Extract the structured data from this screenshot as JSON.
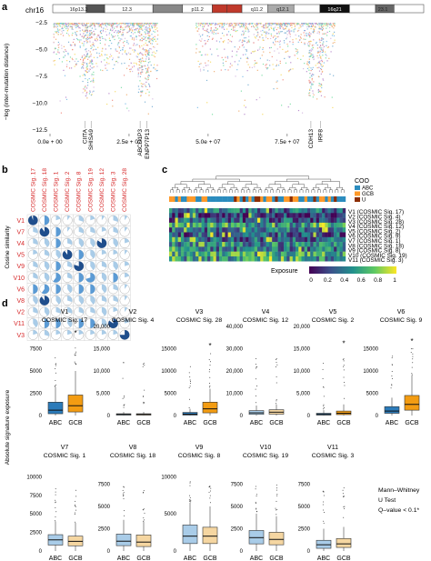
{
  "panel_labels": [
    "a",
    "b",
    "c",
    "d"
  ],
  "chart_data": [
    {
      "panel": "a",
      "type": "scatter",
      "chromosome": "chr16",
      "bands": [
        "16p13.3",
        "12.3",
        "p11.2",
        "q11.2",
        "q12.1",
        "16q21",
        "23.1"
      ],
      "ylabel": "−log (inter-mutation distance)",
      "ylim": [
        -12.5,
        -2.5
      ],
      "xlim": [
        0,
        90000000
      ],
      "yticks": [
        -2.5,
        -5.0,
        -7.5,
        -10.0,
        -12.5
      ],
      "ytick_labels": [
        "−2.5",
        "−5.0",
        "−7.5",
        "−10.0",
        "−12.5"
      ],
      "xticks": [
        0,
        25000000,
        50000000,
        75000000
      ],
      "xtick_labels": [
        "0.0e + 00",
        "2.5e + 07",
        "5.0e + 07",
        "7.5e + 07"
      ],
      "gene_annotations": [
        {
          "label": "CIITA",
          "x": 11000000
        },
        {
          "label": "SHISA9",
          "x": 13000000
        },
        {
          "label": "ABCD1P3",
          "x": 28500000
        },
        {
          "label": "ENPP7P13",
          "x": 30700000
        },
        {
          "label": "CDH13",
          "x": 82500000
        },
        {
          "label": "IRF8",
          "x": 85500000
        }
      ],
      "point_colors": [
        "#7fb3d5",
        "#f0b27a",
        "#82e0aa",
        "#f1948a",
        "#bb8fce",
        "#f7dc6f",
        "#85c1e9",
        "#d7bde2"
      ]
    },
    {
      "panel": "b",
      "type": "heatmap",
      "ylabel": "Cosine similarity",
      "columns": [
        "COSMIC Sig. 17",
        "COSMIC Sig. 18",
        "COSMIC Sig. 1",
        "COSMIC Sig. 2",
        "COSMIC Sig. 8",
        "COSMIC Sig. 19",
        "COSMIC Sig. 12",
        "COSMIC Sig. 3",
        "COSMIC Sig. 28"
      ],
      "rows": [
        "V1",
        "V7",
        "V4",
        "V5",
        "V9",
        "V10",
        "V6",
        "V8",
        "V2",
        "V11",
        "V3"
      ],
      "values": [
        [
          0.95,
          0.5,
          0.2,
          0.1,
          0.3,
          0.2,
          0.1,
          0.3,
          0.1
        ],
        [
          0.3,
          0.9,
          0.5,
          0.1,
          0.3,
          0.3,
          0.2,
          0.3,
          0.1
        ],
        [
          0.3,
          0.4,
          0.5,
          0.3,
          0.4,
          0.4,
          0.85,
          0.4,
          0.2
        ],
        [
          0.2,
          0.3,
          0.4,
          0.9,
          0.5,
          0.4,
          0.2,
          0.2,
          0.1
        ],
        [
          0.3,
          0.4,
          0.5,
          0.3,
          0.8,
          0.4,
          0.3,
          0.4,
          0.2
        ],
        [
          0.3,
          0.4,
          0.6,
          0.3,
          0.5,
          0.7,
          0.4,
          0.5,
          0.2
        ],
        [
          0.5,
          0.6,
          0.5,
          0.4,
          0.5,
          0.5,
          0.4,
          0.3,
          0.1
        ],
        [
          0.4,
          0.9,
          0.4,
          0.3,
          0.4,
          0.4,
          0.3,
          0.3,
          0.1
        ],
        [
          0.3,
          0.4,
          0.3,
          0.3,
          0.3,
          0.3,
          0.4,
          0.2,
          0.1
        ],
        [
          0.4,
          0.5,
          0.5,
          0.4,
          0.5,
          0.5,
          0.4,
          0.85,
          0.2
        ],
        [
          0.2,
          0.3,
          0.2,
          0.2,
          0.2,
          0.2,
          0.2,
          0.2,
          0.75
        ]
      ]
    },
    {
      "panel": "c",
      "type": "heatmap",
      "legend_title": "COO",
      "legend_items": [
        {
          "label": "ABC",
          "color": "#2b8cbe"
        },
        {
          "label": "GCB",
          "color": "#fe9929"
        },
        {
          "label": "U",
          "color": "#8c2d04"
        }
      ],
      "rows": [
        "V1 (COSMIC Sig. 17)",
        "V2 (COSMIC Sig. 4)",
        "V3 (COSMIC Sig. 28)",
        "V4 (COSMIC Sig. 12)",
        "V5 (COSMIC Sig. 2)",
        "V6 (COSMIC Sig. 9)",
        "V7 (COSMIC Sig. 1)",
        "V8 (COSMIC Sig. 18)",
        "V9 (COSMIC Sig. 8)",
        "V10 (COSMIC Sig. 19)",
        "V11 (COSMIC Sig. 3)"
      ],
      "row_means": [
        0.35,
        0.15,
        0.3,
        0.5,
        0.35,
        0.3,
        0.3,
        0.45,
        0.4,
        0.6,
        0.5
      ],
      "n_samples": 60,
      "colorbar_title": "Exposure",
      "colorbar_ticks": [
        "0",
        "0.2",
        "0.4",
        "0.6",
        "0.8",
        "1"
      ],
      "colormap": [
        "#440154",
        "#3b528b",
        "#21918c",
        "#5ec962",
        "#fde725"
      ]
    },
    {
      "panel": "d",
      "type": "box",
      "ylabel": "Absolute signature exposure",
      "groups": [
        "ABC",
        "GCB"
      ],
      "group_colors": [
        "#2b7bba",
        "#f39c12"
      ],
      "footnote": [
        "Mann–Whitney",
        "U Test",
        "Q–value < 0.1*"
      ],
      "panels": [
        {
          "title": "V1",
          "subtitle": "COSMIC Sig. 17",
          "significant": true,
          "ylim": [
            0,
            10000
          ],
          "yticks": [
            0,
            2500,
            5000,
            7500
          ],
          "ytick_labels": [
            "0",
            "2500",
            "5000",
            "7500"
          ],
          "boxes": [
            {
              "q1": 200,
              "median": 600,
              "q3": 1500,
              "lo": 0,
              "hi": 3200
            },
            {
              "q1": 400,
              "median": 1100,
              "q3": 2300,
              "lo": 0,
              "hi": 5000
            }
          ],
          "star_y": 9200
        },
        {
          "title": "V2",
          "subtitle": "COSMIC Sig. 4",
          "significant": false,
          "ylim": [
            0,
            20000
          ],
          "yticks": [
            0,
            5000,
            10000,
            15000,
            20000
          ],
          "ytick_labels": [
            "0",
            "5,000",
            "10,000",
            "15,000",
            "20,000"
          ],
          "boxes": [
            {
              "q1": 100,
              "median": 250,
              "q3": 400,
              "lo": 0,
              "hi": 800
            },
            {
              "q1": 100,
              "median": 250,
              "q3": 400,
              "lo": 0,
              "hi": 800
            }
          ]
        },
        {
          "title": "V3",
          "subtitle": "COSMIC Sig. 28",
          "significant": true,
          "ylim": [
            0,
            20000
          ],
          "yticks": [
            0,
            5000,
            10000,
            15000
          ],
          "ytick_labels": [
            "0",
            "5000",
            "10000",
            "15000"
          ],
          "boxes": [
            {
              "q1": 100,
              "median": 300,
              "q3": 700,
              "lo": 0,
              "hi": 1500
            },
            {
              "q1": 600,
              "median": 1500,
              "q3": 3000,
              "lo": 0,
              "hi": 6000
            }
          ],
          "star_y": 15500
        },
        {
          "title": "V4",
          "subtitle": "COSMIC Sig. 12",
          "significant": false,
          "ylim": [
            0,
            40000
          ],
          "yticks": [
            0,
            10000,
            20000,
            30000,
            40000
          ],
          "ytick_labels": [
            "0",
            "10,000",
            "20,000",
            "30,000",
            "40,000"
          ],
          "boxes": [
            {
              "q1": 500,
              "median": 1200,
              "q3": 2200,
              "lo": 0,
              "hi": 4500
            },
            {
              "q1": 600,
              "median": 1500,
              "q3": 2600,
              "lo": 0,
              "hi": 5000
            }
          ]
        },
        {
          "title": "V5",
          "subtitle": "COSMIC Sig. 2",
          "significant": true,
          "ylim": [
            0,
            20000
          ],
          "yticks": [
            0,
            5000,
            10000,
            15000,
            20000
          ],
          "ytick_labels": [
            "0",
            "5,000",
            "10,000",
            "15,000",
            "20,000"
          ],
          "boxes": [
            {
              "q1": 100,
              "median": 250,
              "q3": 500,
              "lo": 0,
              "hi": 1200
            },
            {
              "q1": 200,
              "median": 500,
              "q3": 1000,
              "lo": 0,
              "hi": 2500
            }
          ],
          "star_y": 16000
        },
        {
          "title": "V6",
          "subtitle": "COSMIC Sig. 9",
          "significant": true,
          "ylim": [
            0,
            20000
          ],
          "yticks": [
            0,
            5000,
            10000,
            15000
          ],
          "ytick_labels": [
            "0",
            "5000",
            "10000",
            "15000"
          ],
          "boxes": [
            {
              "q1": 500,
              "median": 1000,
              "q3": 2000,
              "lo": 0,
              "hi": 4000
            },
            {
              "q1": 1200,
              "median": 2500,
              "q3": 4500,
              "lo": 0,
              "hi": 9000
            }
          ],
          "star_y": 16500
        },
        {
          "title": "V7",
          "subtitle": "COSMIC Sig. 1",
          "significant": false,
          "ylim": [
            0,
            12000
          ],
          "yticks": [
            0,
            2500,
            5000,
            7500,
            10000
          ],
          "ytick_labels": [
            "0",
            "2500",
            "5000",
            "7500",
            "10000"
          ],
          "boxes": [
            {
              "q1": 800,
              "median": 1500,
              "q3": 2200,
              "lo": 0,
              "hi": 4000
            },
            {
              "q1": 700,
              "median": 1300,
              "q3": 2000,
              "lo": 0,
              "hi": 3800
            }
          ]
        },
        {
          "title": "V8",
          "subtitle": "COSMIC Sig. 18",
          "significant": false,
          "ylim": [
            0,
            10000
          ],
          "yticks": [
            0,
            2500,
            5000,
            7500
          ],
          "ytick_labels": [
            "0",
            "2500",
            "5000",
            "7500"
          ],
          "boxes": [
            {
              "q1": 600,
              "median": 1100,
              "q3": 1900,
              "lo": 0,
              "hi": 3500
            },
            {
              "q1": 500,
              "median": 1000,
              "q3": 1800,
              "lo": 0,
              "hi": 3300
            }
          ]
        },
        {
          "title": "V9",
          "subtitle": "COSMIC Sig. 8",
          "significant": false,
          "ylim": [
            0,
            12000
          ],
          "yticks": [
            0,
            5000,
            10000
          ],
          "ytick_labels": [
            "0",
            "5000",
            "10000"
          ],
          "boxes": [
            {
              "q1": 1000,
              "median": 2000,
              "q3": 3500,
              "lo": 0,
              "hi": 6500
            },
            {
              "q1": 1000,
              "median": 2000,
              "q3": 3200,
              "lo": 0,
              "hi": 6000
            }
          ]
        },
        {
          "title": "V10",
          "subtitle": "COSMIC Sig. 19",
          "significant": false,
          "ylim": [
            0,
            10000
          ],
          "yticks": [
            0,
            2500,
            5000,
            7500
          ],
          "ytick_labels": [
            "0",
            "2500",
            "5000",
            "7500"
          ],
          "boxes": [
            {
              "q1": 800,
              "median": 1500,
              "q3": 2300,
              "lo": 0,
              "hi": 4200
            },
            {
              "q1": 700,
              "median": 1300,
              "q3": 2100,
              "lo": 0,
              "hi": 3900
            }
          ]
        },
        {
          "title": "V11",
          "subtitle": "COSMIC Sig. 3",
          "significant": false,
          "ylim": [
            0,
            10000
          ],
          "yticks": [
            0,
            2500,
            5000,
            7500
          ],
          "ytick_labels": [
            "0",
            "2500",
            "5000",
            "7500"
          ],
          "boxes": [
            {
              "q1": 300,
              "median": 700,
              "q3": 1200,
              "lo": 0,
              "hi": 2500
            },
            {
              "q1": 400,
              "median": 800,
              "q3": 1400,
              "lo": 0,
              "hi": 2700
            }
          ]
        }
      ]
    }
  ]
}
